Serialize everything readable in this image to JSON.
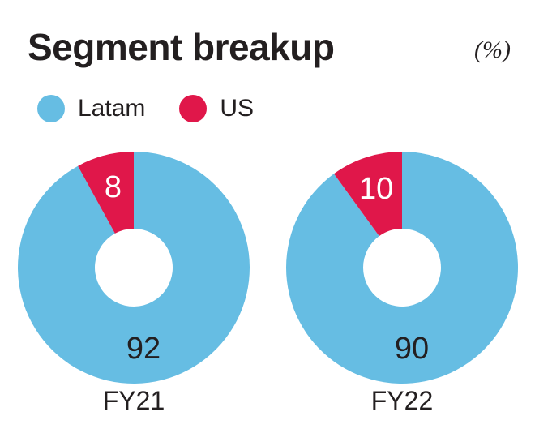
{
  "header": {
    "title": "Segment breakup",
    "unit": "(%)"
  },
  "legend": [
    {
      "label": "Latam",
      "color": "#66bde3"
    },
    {
      "label": "US",
      "color": "#e0174a"
    }
  ],
  "chart_data": {
    "type": "pie",
    "title": "Segment breakup",
    "unit": "(%)",
    "series_names": [
      "Latam",
      "US"
    ],
    "colors": [
      "#66bde3",
      "#e0174a"
    ],
    "charts": [
      {
        "category": "FY21",
        "slices": [
          {
            "name": "Latam",
            "value": 92,
            "label": "92"
          },
          {
            "name": "US",
            "value": 8,
            "label": "8"
          }
        ]
      },
      {
        "category": "FY22",
        "slices": [
          {
            "name": "Latam",
            "value": 90,
            "label": "90"
          },
          {
            "name": "US",
            "value": 10,
            "label": "10"
          }
        ]
      }
    ],
    "legend_position": "top-left",
    "donut": true
  }
}
